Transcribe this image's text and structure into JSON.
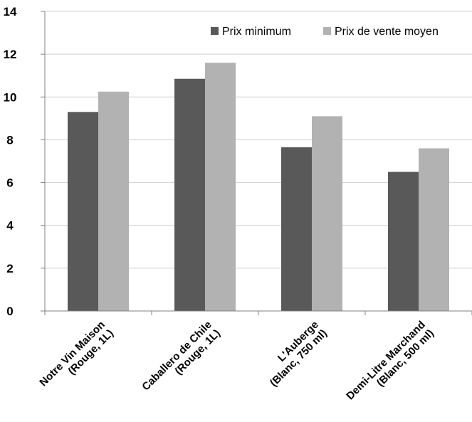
{
  "chart_data": {
    "type": "bar",
    "categories": [
      [
        "Notre Vin Maison",
        "(Rouge, 1L)"
      ],
      [
        "Caballero de Chile",
        "(Rouge, 1L)"
      ],
      [
        "L'Auberge",
        "(Blanc, 750 ml)"
      ],
      [
        "Demi-Litre Marchand",
        "(Blanc, 500 ml)"
      ]
    ],
    "series": [
      {
        "name": "Prix minimum",
        "values": [
          9.3,
          10.85,
          7.65,
          6.5
        ],
        "color": "#595959"
      },
      {
        "name": "Prix de vente moyen",
        "values": [
          10.25,
          11.6,
          9.1,
          7.6
        ],
        "color": "#b2b2b2"
      }
    ],
    "ylim": [
      0,
      14
    ],
    "yticks": [
      0,
      2,
      4,
      6,
      8,
      10,
      12,
      14
    ],
    "grid": true,
    "legend_position": "top-right",
    "title": "",
    "xlabel": "",
    "ylabel": ""
  }
}
